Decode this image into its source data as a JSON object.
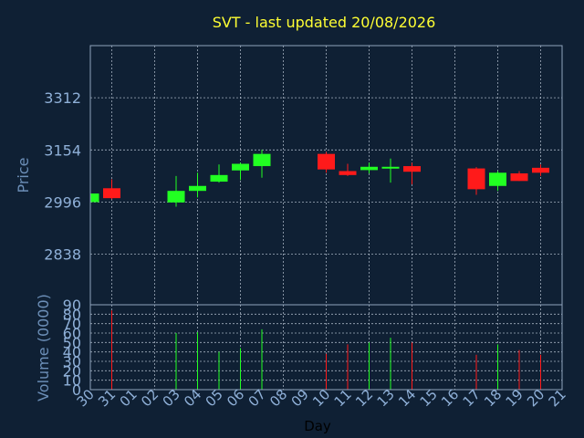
{
  "chart_data": {
    "type": "candlestick",
    "title": "SVT - last updated 20/08/2026",
    "xlabel": "Day",
    "x_ticks": [
      "30",
      "31",
      "01",
      "02",
      "03",
      "04",
      "05",
      "06",
      "07",
      "08",
      "09",
      "10",
      "11",
      "12",
      "13",
      "14",
      "15",
      "16",
      "17",
      "18",
      "19",
      "20",
      "21"
    ],
    "price_panel": {
      "ylabel": "Price",
      "y_ticks": [
        2838,
        2996,
        3154,
        3312
      ],
      "ylim": [
        2685,
        3470
      ],
      "grid": true,
      "candles": [
        {
          "day": "30",
          "open": 2996,
          "high": 3022,
          "low": 2994,
          "close": 3022
        },
        {
          "day": "31",
          "open": 3038,
          "high": 3065,
          "low": 3005,
          "close": 3008
        },
        {
          "day": "03",
          "open": 2995,
          "high": 3075,
          "low": 2982,
          "close": 3030
        },
        {
          "day": "04",
          "open": 3030,
          "high": 3085,
          "low": 3010,
          "close": 3045
        },
        {
          "day": "05",
          "open": 3058,
          "high": 3110,
          "low": 3055,
          "close": 3078
        },
        {
          "day": "06",
          "open": 3092,
          "high": 3115,
          "low": 3063,
          "close": 3112
        },
        {
          "day": "07",
          "open": 3105,
          "high": 3155,
          "low": 3070,
          "close": 3142
        },
        {
          "day": "10",
          "open": 3142,
          "high": 3148,
          "low": 3085,
          "close": 3095
        },
        {
          "day": "11",
          "open": 3090,
          "high": 3112,
          "low": 3075,
          "close": 3078
        },
        {
          "day": "12",
          "open": 3093,
          "high": 3115,
          "low": 3083,
          "close": 3103
        },
        {
          "day": "13",
          "open": 3100,
          "high": 3128,
          "low": 3055,
          "close": 3103
        },
        {
          "day": "14",
          "open": 3105,
          "high": 3115,
          "low": 3050,
          "close": 3088
        },
        {
          "day": "17",
          "open": 3098,
          "high": 3102,
          "low": 3018,
          "close": 3035
        },
        {
          "day": "18",
          "open": 3045,
          "high": 3090,
          "low": 3030,
          "close": 3085
        },
        {
          "day": "19",
          "open": 3083,
          "high": 3090,
          "low": 3060,
          "close": 3060
        },
        {
          "day": "20",
          "open": 3100,
          "high": 3110,
          "low": 3075,
          "close": 3085
        }
      ]
    },
    "volume_panel": {
      "ylabel": "Volume (0000)",
      "y_ticks": [
        0,
        10,
        20,
        30,
        40,
        50,
        60,
        70,
        80,
        90
      ],
      "ylim": [
        0,
        90
      ],
      "values": [
        {
          "day": "31",
          "value": 84,
          "dir": "down"
        },
        {
          "day": "03",
          "value": 60,
          "dir": "up"
        },
        {
          "day": "04",
          "value": 61,
          "dir": "up"
        },
        {
          "day": "05",
          "value": 40,
          "dir": "up"
        },
        {
          "day": "06",
          "value": 44,
          "dir": "up"
        },
        {
          "day": "07",
          "value": 64,
          "dir": "up"
        },
        {
          "day": "10",
          "value": 38,
          "dir": "down"
        },
        {
          "day": "11",
          "value": 48,
          "dir": "down"
        },
        {
          "day": "12",
          "value": 50,
          "dir": "up"
        },
        {
          "day": "13",
          "value": 55,
          "dir": "up"
        },
        {
          "day": "14",
          "value": 50,
          "dir": "down"
        },
        {
          "day": "17",
          "value": 37,
          "dir": "down"
        },
        {
          "day": "18",
          "value": 48,
          "dir": "up"
        },
        {
          "day": "19",
          "value": 42,
          "dir": "down"
        },
        {
          "day": "20",
          "value": 37,
          "dir": "down"
        }
      ]
    },
    "colors": {
      "background": "#0f2034",
      "up": "#22ff22",
      "down": "#ff1a1a",
      "title": "#ffff33",
      "axis_text": "#8fb0d8",
      "label_text": "#6c8fb8",
      "day_label": "#000000",
      "frame": "#8fa3bd",
      "grid": "#c8d4e2"
    }
  }
}
